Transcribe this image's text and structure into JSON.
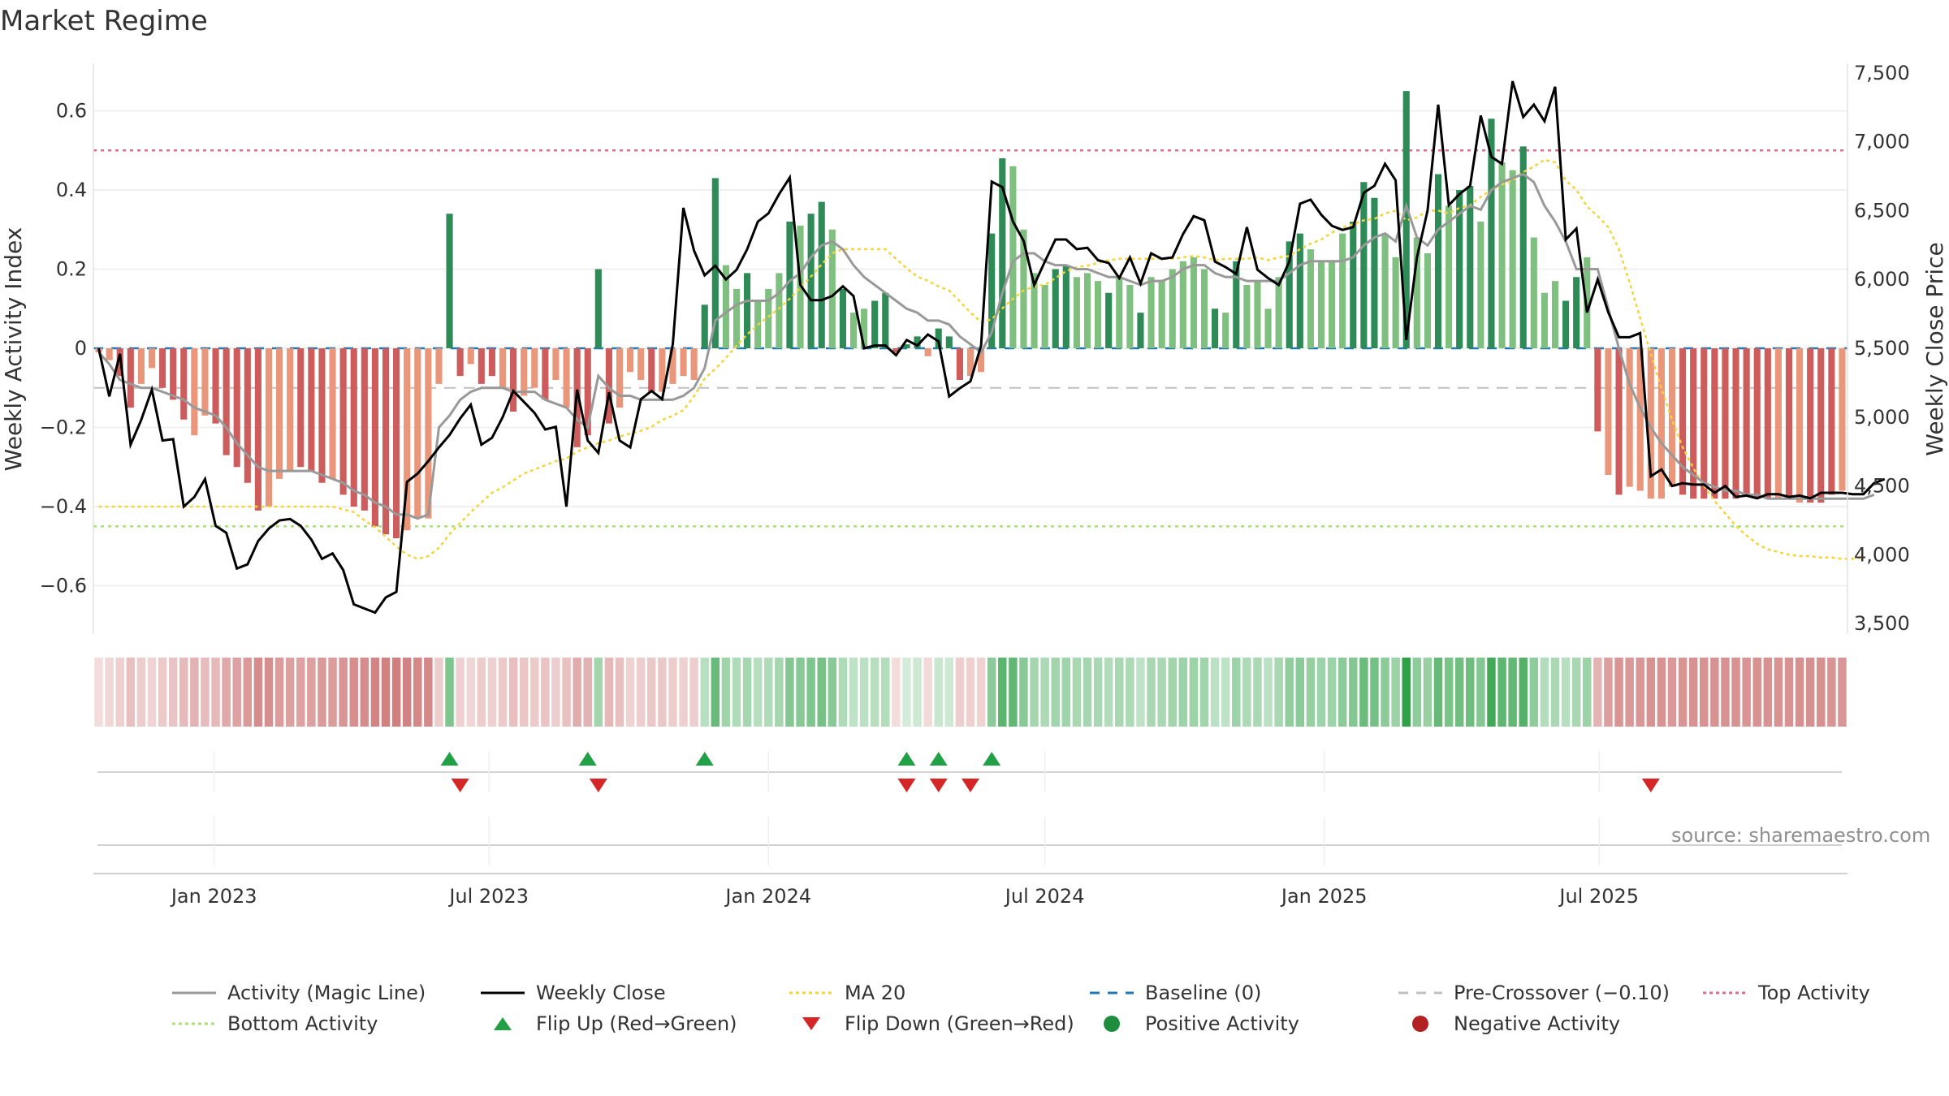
{
  "page": {
    "title": "Market Regime",
    "source": "source: sharemaestro.com"
  },
  "colors": {
    "green_dark": "#2e8b57",
    "green_light": "#7fbf7f",
    "red_dark": "#cd5c5c",
    "red_light": "#e9967a",
    "magic_line": "#999999",
    "close_line": "#000000",
    "ma20": "#f2d53c",
    "baseline": "#1f77b4",
    "precross": "#c0c0c0",
    "top": "#e06c8a",
    "bottom": "#a8e07a",
    "flip_up": "#22a045",
    "flip_down": "#d62728",
    "positive": "#1e8e3e",
    "negative": "#b22222"
  },
  "chart_data": {
    "type": "bar",
    "title": "Market Regime",
    "x_start": "2022-10-17",
    "x_step_days": 7,
    "ylabel_left": "Weekly Activity Index",
    "ylabel_right": "Weekly Close Price",
    "left_ylim": [
      -0.72,
      0.72
    ],
    "left_ticks": [
      0.6,
      0.4,
      0.2,
      0,
      -0.2,
      -0.4,
      -0.6
    ],
    "left_tick_labels": [
      "0.6",
      "0.4",
      "0.2",
      "0",
      "−0.2",
      "−0.4",
      "−0.6"
    ],
    "right_ylim": [
      3430,
      7570
    ],
    "right_ticks": [
      7500,
      7000,
      6500,
      6000,
      5500,
      5000,
      4500,
      4000,
      3500
    ],
    "right_tick_labels": [
      "7,500",
      "7,000",
      "6,500",
      "6,000",
      "5,500",
      "5,000",
      "4,500",
      "4,000",
      "3,500"
    ],
    "x_ticks": [
      {
        "label": "Jan 2023",
        "date": "2023-01-01"
      },
      {
        "label": "Jul 2023",
        "date": "2023-07-01"
      },
      {
        "label": "Jan 2024",
        "date": "2024-01-01"
      },
      {
        "label": "Jul 2024",
        "date": "2024-07-01"
      },
      {
        "label": "Jan 2025",
        "date": "2025-01-01"
      },
      {
        "label": "Jul 2025",
        "date": "2025-07-01"
      }
    ],
    "reference_lines": {
      "baseline": 0,
      "pre_crossover": -0.1,
      "top_activity": 0.5,
      "bottom_activity": -0.45
    },
    "activity": [
      -0.01,
      -0.03,
      -0.07,
      -0.15,
      -0.09,
      -0.05,
      -0.1,
      -0.13,
      -0.18,
      -0.22,
      -0.17,
      -0.19,
      -0.27,
      -0.3,
      -0.34,
      -0.41,
      -0.4,
      -0.33,
      -0.31,
      -0.3,
      -0.31,
      -0.34,
      -0.33,
      -0.37,
      -0.4,
      -0.41,
      -0.45,
      -0.47,
      -0.48,
      -0.46,
      -0.43,
      -0.43,
      -0.09,
      0.34,
      -0.07,
      -0.04,
      -0.09,
      -0.07,
      -0.1,
      -0.16,
      -0.12,
      -0.1,
      -0.13,
      -0.08,
      -0.15,
      -0.25,
      -0.22,
      0.2,
      -0.19,
      -0.15,
      -0.06,
      -0.08,
      -0.11,
      -0.11,
      -0.09,
      -0.07,
      -0.08,
      0.11,
      0.43,
      0.21,
      0.15,
      0.19,
      0.12,
      0.15,
      0.19,
      0.32,
      0.31,
      0.34,
      0.37,
      0.3,
      0.15,
      0.09,
      0.1,
      0.12,
      0.14,
      -0.01,
      0.01,
      0.03,
      -0.02,
      0.05,
      0.03,
      -0.08,
      -0.07,
      -0.06,
      0.29,
      0.48,
      0.46,
      0.3,
      0.19,
      0.16,
      0.2,
      0.21,
      0.18,
      0.19,
      0.17,
      0.14,
      0.18,
      0.16,
      0.09,
      0.18,
      0.17,
      0.2,
      0.22,
      0.23,
      0.2,
      0.1,
      0.09,
      0.22,
      0.16,
      0.17,
      0.1,
      0.18,
      0.27,
      0.29,
      0.25,
      0.22,
      0.22,
      0.29,
      0.32,
      0.42,
      0.38,
      0.29,
      0.23,
      0.65,
      0.28,
      0.24,
      0.44,
      0.36,
      0.4,
      0.41,
      0.32,
      0.58,
      0.47,
      0.45,
      0.51,
      0.28,
      0.14,
      0.17,
      0.12,
      0.18,
      0.23,
      -0.21,
      -0.32,
      -0.37,
      -0.35,
      -0.36,
      -0.38,
      -0.38,
      -0.35,
      -0.37,
      -0.38,
      -0.38,
      -0.38,
      -0.38,
      -0.38,
      -0.37,
      -0.38,
      -0.38,
      -0.38,
      -0.38,
      -0.39,
      -0.39,
      -0.39,
      -0.37,
      -0.36
    ],
    "activity_strength": [
      "light",
      "light",
      "dark",
      "dark",
      "light",
      "light",
      "dark",
      "dark",
      "dark",
      "light",
      "light",
      "dark",
      "dark",
      "dark",
      "dark",
      "dark",
      "light",
      "light",
      "light",
      "dark",
      "dark",
      "dark",
      "light",
      "dark",
      "dark",
      "dark",
      "dark",
      "dark",
      "dark",
      "light",
      "light",
      "light",
      "light",
      "dark",
      "dark",
      "light",
      "dark",
      "dark",
      "light",
      "dark",
      "light",
      "light",
      "dark",
      "light",
      "light",
      "dark",
      "dark",
      "dark",
      "dark",
      "light",
      "light",
      "light",
      "dark",
      "light",
      "light",
      "light",
      "light",
      "dark",
      "dark",
      "light",
      "light",
      "dark",
      "light",
      "light",
      "light",
      "dark",
      "light",
      "dark",
      "dark",
      "light",
      "dark",
      "light",
      "light",
      "dark",
      "dark",
      "dark",
      "dark",
      "dark",
      "light",
      "dark",
      "dark",
      "dark",
      "light",
      "light",
      "dark",
      "dark",
      "light",
      "light",
      "light",
      "light",
      "dark",
      "dark",
      "light",
      "light",
      "light",
      "dark",
      "light",
      "light",
      "dark",
      "light",
      "light",
      "light",
      "light",
      "light",
      "light",
      "dark",
      "light",
      "dark",
      "light",
      "light",
      "light",
      "light",
      "dark",
      "dark",
      "light",
      "light",
      "light",
      "light",
      "dark",
      "dark",
      "dark",
      "light",
      "light",
      "dark",
      "light",
      "light",
      "dark",
      "light",
      "dark",
      "dark",
      "light",
      "dark",
      "light",
      "light",
      "dark",
      "light",
      "light",
      "light",
      "dark",
      "dark",
      "light",
      "dark",
      "light",
      "dark",
      "light",
      "light",
      "light",
      "light",
      "light",
      "dark",
      "dark",
      "dark",
      "dark",
      "dark",
      "dark",
      "dark",
      "dark",
      "dark",
      "light",
      "dark",
      "light",
      "dark",
      "dark",
      "dark",
      "light",
      "light",
      "light"
    ],
    "magic_line": [
      -0.01,
      -0.04,
      -0.08,
      -0.09,
      -0.1,
      -0.1,
      -0.11,
      -0.12,
      -0.13,
      -0.15,
      -0.16,
      -0.17,
      -0.2,
      -0.24,
      -0.27,
      -0.3,
      -0.31,
      -0.31,
      -0.31,
      -0.31,
      -0.31,
      -0.32,
      -0.33,
      -0.34,
      -0.36,
      -0.37,
      -0.39,
      -0.4,
      -0.42,
      -0.42,
      -0.43,
      -0.42,
      -0.2,
      -0.17,
      -0.13,
      -0.11,
      -0.1,
      -0.1,
      -0.1,
      -0.11,
      -0.11,
      -0.11,
      -0.13,
      -0.14,
      -0.15,
      -0.18,
      -0.2,
      -0.07,
      -0.1,
      -0.12,
      -0.12,
      -0.13,
      -0.13,
      -0.13,
      -0.13,
      -0.12,
      -0.1,
      -0.05,
      0.07,
      0.09,
      0.11,
      0.12,
      0.12,
      0.12,
      0.14,
      0.17,
      0.19,
      0.23,
      0.26,
      0.27,
      0.25,
      0.21,
      0.18,
      0.16,
      0.14,
      0.12,
      0.1,
      0.09,
      0.07,
      0.07,
      0.06,
      0.03,
      0.01,
      -0.01,
      0.04,
      0.14,
      0.22,
      0.24,
      0.24,
      0.22,
      0.21,
      0.21,
      0.2,
      0.2,
      0.19,
      0.18,
      0.18,
      0.17,
      0.16,
      0.17,
      0.17,
      0.18,
      0.2,
      0.21,
      0.21,
      0.19,
      0.18,
      0.18,
      0.17,
      0.17,
      0.17,
      0.17,
      0.19,
      0.21,
      0.22,
      0.22,
      0.22,
      0.22,
      0.23,
      0.26,
      0.28,
      0.29,
      0.27,
      0.36,
      0.28,
      0.26,
      0.3,
      0.32,
      0.34,
      0.36,
      0.35,
      0.4,
      0.42,
      0.43,
      0.44,
      0.42,
      0.36,
      0.32,
      0.27,
      0.2,
      0.2,
      0.2,
      0.1,
      0.0,
      -0.09,
      -0.15,
      -0.2,
      -0.24,
      -0.27,
      -0.3,
      -0.32,
      -0.34,
      -0.35,
      -0.36,
      -0.36,
      -0.37,
      -0.37,
      -0.38,
      -0.38,
      -0.38,
      -0.38,
      -0.38,
      -0.38,
      -0.38,
      -0.38,
      -0.38,
      -0.38,
      -0.37
    ],
    "weekly_close": [
      5500,
      5150,
      5460,
      4800,
      4980,
      5200,
      4830,
      4840,
      4350,
      4420,
      4550,
      4210,
      4160,
      3900,
      3930,
      4100,
      4190,
      4250,
      4260,
      4210,
      4110,
      3970,
      4010,
      3890,
      3640,
      3610,
      3580,
      3690,
      3730,
      4530,
      4590,
      4680,
      4780,
      4870,
      4990,
      5090,
      4800,
      4850,
      5000,
      5190,
      5110,
      5030,
      4910,
      4930,
      4350,
      5200,
      4830,
      4740,
      5180,
      4830,
      4780,
      5130,
      5190,
      5130,
      5530,
      6520,
      6210,
      6030,
      6100,
      6000,
      6070,
      6220,
      6420,
      6480,
      6620,
      6740,
      5960,
      5850,
      5850,
      5880,
      5950,
      5880,
      5500,
      5520,
      5520,
      5450,
      5560,
      5520,
      5600,
      5550,
      5150,
      5210,
      5260,
      5520,
      6710,
      6670,
      6420,
      6280,
      5960,
      6130,
      6290,
      6290,
      6220,
      6230,
      6140,
      6120,
      6010,
      6160,
      5970,
      6190,
      6150,
      6160,
      6330,
      6460,
      6430,
      6130,
      6090,
      6040,
      6380,
      6070,
      6010,
      5960,
      6130,
      6550,
      6580,
      6470,
      6390,
      6360,
      6380,
      6630,
      6680,
      6840,
      6720,
      5560,
      6160,
      6500,
      7270,
      6540,
      6620,
      6680,
      7190,
      6890,
      6840,
      7440,
      7180,
      7270,
      7150,
      7400,
      6290,
      6370,
      5760,
      6000,
      5760,
      5580,
      5580,
      5610,
      4570,
      4620,
      4500,
      4520,
      4510,
      4510,
      4450,
      4500,
      4420,
      4430,
      4410,
      4440,
      4440,
      4420,
      4430,
      4410,
      4450,
      4450,
      4450,
      4440,
      4440,
      4520,
      4550
    ],
    "ma20": [
      4350,
      4350,
      4350,
      4350,
      4350,
      4350,
      4350,
      4350,
      4350,
      4350,
      4350,
      4350,
      4350,
      4350,
      4350,
      4350,
      4350,
      4350,
      4350,
      4350,
      4350,
      4350,
      4350,
      4330,
      4310,
      4250,
      4200,
      4130,
      4060,
      4000,
      3970,
      3990,
      4050,
      4150,
      4230,
      4310,
      4380,
      4450,
      4490,
      4540,
      4590,
      4620,
      4650,
      4680,
      4700,
      4750,
      4780,
      4810,
      4830,
      4860,
      4880,
      4900,
      4930,
      4980,
      5010,
      5050,
      5150,
      5280,
      5350,
      5430,
      5520,
      5600,
      5670,
      5730,
      5790,
      5860,
      5940,
      6020,
      6110,
      6190,
      6220,
      6220,
      6220,
      6220,
      6220,
      6150,
      6080,
      6020,
      5990,
      5950,
      5920,
      5840,
      5760,
      5690,
      5710,
      5790,
      5860,
      5920,
      5950,
      5960,
      6010,
      6060,
      6090,
      6100,
      6120,
      6140,
      6150,
      6150,
      6150,
      6150,
      6150,
      6150,
      6160,
      6170,
      6160,
      6140,
      6150,
      6150,
      6150,
      6160,
      6140,
      6160,
      6170,
      6220,
      6260,
      6290,
      6340,
      6380,
      6400,
      6430,
      6440,
      6480,
      6500,
      6430,
      6450,
      6500,
      6500,
      6480,
      6520,
      6540,
      6600,
      6650,
      6690,
      6720,
      6780,
      6820,
      6870,
      6850,
      6720,
      6650,
      6530,
      6460,
      6380,
      6220,
      5980,
      5720,
      5460,
      5210,
      4980,
      4780,
      4630,
      4500,
      4390,
      4300,
      4210,
      4140,
      4080,
      4040,
      4020,
      4000,
      3990,
      3990,
      3980,
      3980,
      3970,
      3970,
      3980
    ],
    "flips_up": [
      33,
      46,
      57,
      76,
      79,
      84
    ],
    "flips_down": [
      34,
      47,
      76,
      79,
      82,
      146
    ]
  },
  "legend": [
    {
      "label": "Activity (Magic Line)",
      "symbol": "line",
      "color": "#999999",
      "dash": ""
    },
    {
      "label": "Weekly Close",
      "symbol": "line",
      "color": "#000000",
      "dash": ""
    },
    {
      "label": "MA 20",
      "symbol": "line",
      "color": "#f2d53c",
      "dash": "4 4"
    },
    {
      "label": "Baseline (0)",
      "symbol": "line",
      "color": "#1f77b4",
      "dash": "12 10"
    },
    {
      "label": "Pre-Crossover (−0.10)",
      "symbol": "line",
      "color": "#c0c0c0",
      "dash": "12 10"
    },
    {
      "label": "Top Activity",
      "symbol": "line",
      "color": "#e06c8a",
      "dash": "4 4"
    },
    {
      "label": "Bottom Activity",
      "symbol": "line",
      "color": "#a8e07a",
      "dash": "4 4"
    },
    {
      "label": "Flip Up (Red→Green)",
      "symbol": "triangle-up",
      "color": "#22a045",
      "dash": ""
    },
    {
      "label": "Flip Down (Green→Red)",
      "symbol": "triangle-down",
      "color": "#d62728",
      "dash": ""
    },
    {
      "label": "Positive Activity",
      "symbol": "circle",
      "color": "#1e8e3e",
      "dash": ""
    },
    {
      "label": "Negative Activity",
      "symbol": "circle",
      "color": "#b22222",
      "dash": ""
    }
  ]
}
